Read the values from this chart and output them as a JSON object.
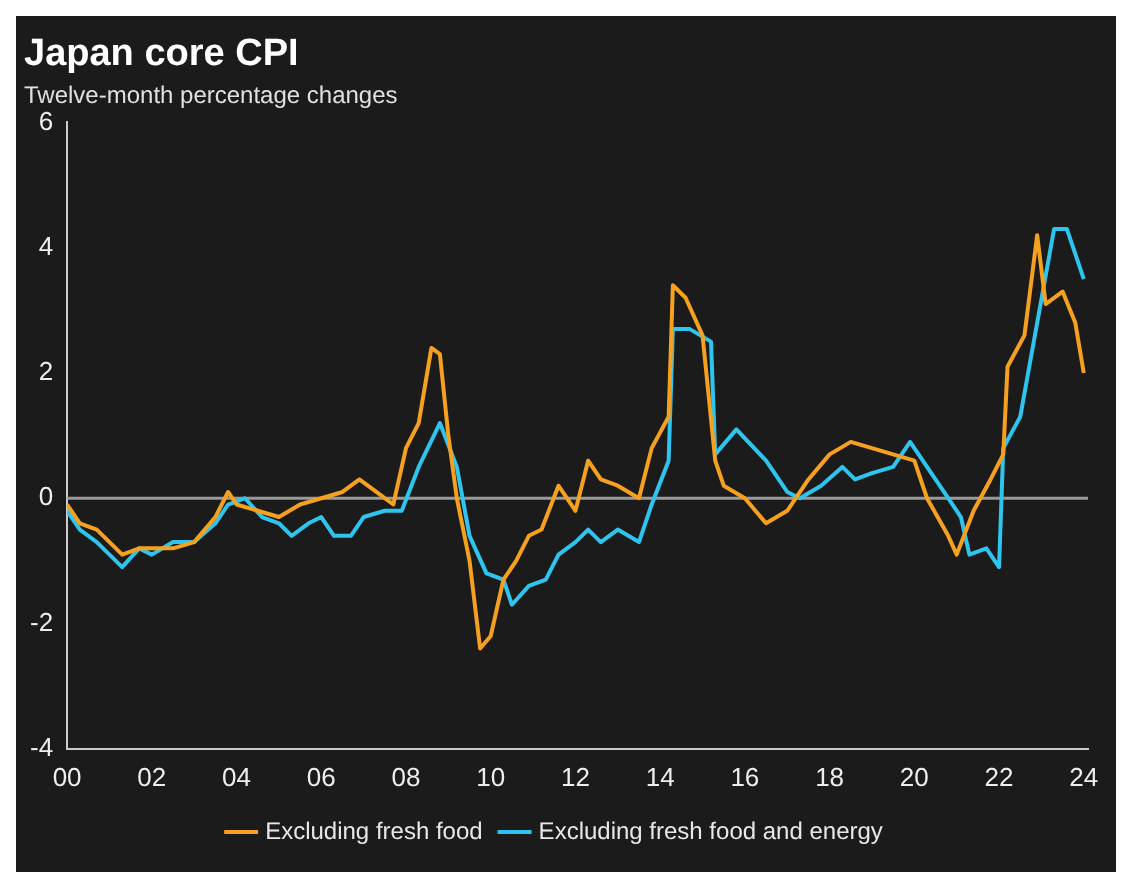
{
  "chart_data": {
    "type": "line",
    "title": "Japan core CPI",
    "subtitle": "Twelve-month percentage changes",
    "series": [
      {
        "name": "Excluding fresh food",
        "color": "#f5a01f",
        "x": [
          2000.0,
          2000.3,
          2000.7,
          2001.0,
          2001.3,
          2001.7,
          2002.0,
          2002.5,
          2003.0,
          2003.5,
          2003.8,
          2004.0,
          2004.5,
          2005.0,
          2005.5,
          2006.0,
          2006.5,
          2006.9,
          2007.3,
          2007.7,
          2008.0,
          2008.3,
          2008.6,
          2008.8,
          2009.0,
          2009.2,
          2009.5,
          2009.75,
          2010.0,
          2010.3,
          2010.6,
          2010.9,
          2011.2,
          2011.6,
          2012.0,
          2012.3,
          2012.6,
          2013.0,
          2013.5,
          2013.8,
          2014.2,
          2014.3,
          2014.6,
          2015.0,
          2015.3,
          2015.5,
          2016.0,
          2016.5,
          2017.0,
          2017.5,
          2018.0,
          2018.5,
          2019.0,
          2019.5,
          2020.0,
          2020.3,
          2020.8,
          2021.0,
          2021.4,
          2021.8,
          2022.1,
          2022.2,
          2022.6,
          2022.9,
          2023.1,
          2023.5,
          2023.8,
          2024.0
        ],
        "values": [
          -0.1,
          -0.4,
          -0.5,
          -0.7,
          -0.9,
          -0.8,
          -0.8,
          -0.8,
          -0.7,
          -0.3,
          0.1,
          -0.1,
          -0.2,
          -0.3,
          -0.1,
          0.0,
          0.1,
          0.3,
          0.1,
          -0.1,
          0.8,
          1.2,
          2.4,
          2.3,
          1.0,
          0.0,
          -1.0,
          -2.4,
          -2.2,
          -1.3,
          -1.0,
          -0.6,
          -0.5,
          0.2,
          -0.2,
          0.6,
          0.3,
          0.2,
          0.0,
          0.8,
          1.3,
          3.4,
          3.2,
          2.6,
          0.6,
          0.2,
          0.0,
          -0.4,
          -0.2,
          0.3,
          0.7,
          0.9,
          0.8,
          0.7,
          0.6,
          0.0,
          -0.6,
          -0.9,
          -0.2,
          0.3,
          0.7,
          2.1,
          2.6,
          4.2,
          3.1,
          3.3,
          2.8,
          2.0
        ]
      },
      {
        "name": "Excluding fresh food and energy",
        "color": "#2ec4ee",
        "x": [
          2000.0,
          2000.3,
          2000.7,
          2001.0,
          2001.3,
          2001.7,
          2002.0,
          2002.5,
          2003.0,
          2003.5,
          2003.8,
          2004.2,
          2004.6,
          2005.0,
          2005.3,
          2005.7,
          2006.0,
          2006.3,
          2006.7,
          2007.0,
          2007.5,
          2007.9,
          2008.3,
          2008.8,
          2009.2,
          2009.5,
          2009.9,
          2010.3,
          2010.5,
          2010.9,
          2011.3,
          2011.6,
          2012.0,
          2012.3,
          2012.6,
          2013.0,
          2013.5,
          2013.8,
          2014.2,
          2014.3,
          2014.7,
          2015.2,
          2015.3,
          2015.8,
          2016.5,
          2017.0,
          2017.3,
          2017.8,
          2018.3,
          2018.6,
          2019.0,
          2019.5,
          2019.9,
          2020.3,
          2020.8,
          2021.1,
          2021.3,
          2021.7,
          2022.0,
          2022.1,
          2022.5,
          2022.9,
          2023.3,
          2023.6,
          2023.8,
          2024.0
        ],
        "values": [
          -0.2,
          -0.5,
          -0.7,
          -0.9,
          -1.1,
          -0.8,
          -0.9,
          -0.7,
          -0.7,
          -0.4,
          -0.1,
          0.0,
          -0.3,
          -0.4,
          -0.6,
          -0.4,
          -0.3,
          -0.6,
          -0.6,
          -0.3,
          -0.2,
          -0.2,
          0.5,
          1.2,
          0.5,
          -0.6,
          -1.2,
          -1.3,
          -1.7,
          -1.4,
          -1.3,
          -0.9,
          -0.7,
          -0.5,
          -0.7,
          -0.5,
          -0.7,
          -0.1,
          0.6,
          2.7,
          2.7,
          2.5,
          0.7,
          1.1,
          0.6,
          0.1,
          0.0,
          0.2,
          0.5,
          0.3,
          0.4,
          0.5,
          0.9,
          0.5,
          0.0,
          -0.3,
          -0.9,
          -0.8,
          -1.1,
          0.8,
          1.3,
          2.8,
          4.3,
          4.3,
          3.9,
          3.5
        ]
      }
    ],
    "xlim": [
      2000,
      2024.1
    ],
    "xticks": [
      {
        "value": 2000,
        "label": "00"
      },
      {
        "value": 2002,
        "label": "02"
      },
      {
        "value": 2004,
        "label": "04"
      },
      {
        "value": 2006,
        "label": "06"
      },
      {
        "value": 2008,
        "label": "08"
      },
      {
        "value": 2010,
        "label": "10"
      },
      {
        "value": 2012,
        "label": "12"
      },
      {
        "value": 2014,
        "label": "14"
      },
      {
        "value": 2016,
        "label": "16"
      },
      {
        "value": 2018,
        "label": "18"
      },
      {
        "value": 2020,
        "label": "20"
      },
      {
        "value": 2022,
        "label": "22"
      },
      {
        "value": 2024,
        "label": "24"
      }
    ],
    "ylim": [
      -4,
      6
    ],
    "yticks": [
      -4,
      -2,
      0,
      2,
      4,
      6
    ],
    "ref_lines": [
      {
        "axis": "y",
        "value": 0,
        "color": "#9a9a9a"
      }
    ],
    "grid": false,
    "legend": "bottom",
    "marker": "none",
    "line_style": "solid"
  }
}
